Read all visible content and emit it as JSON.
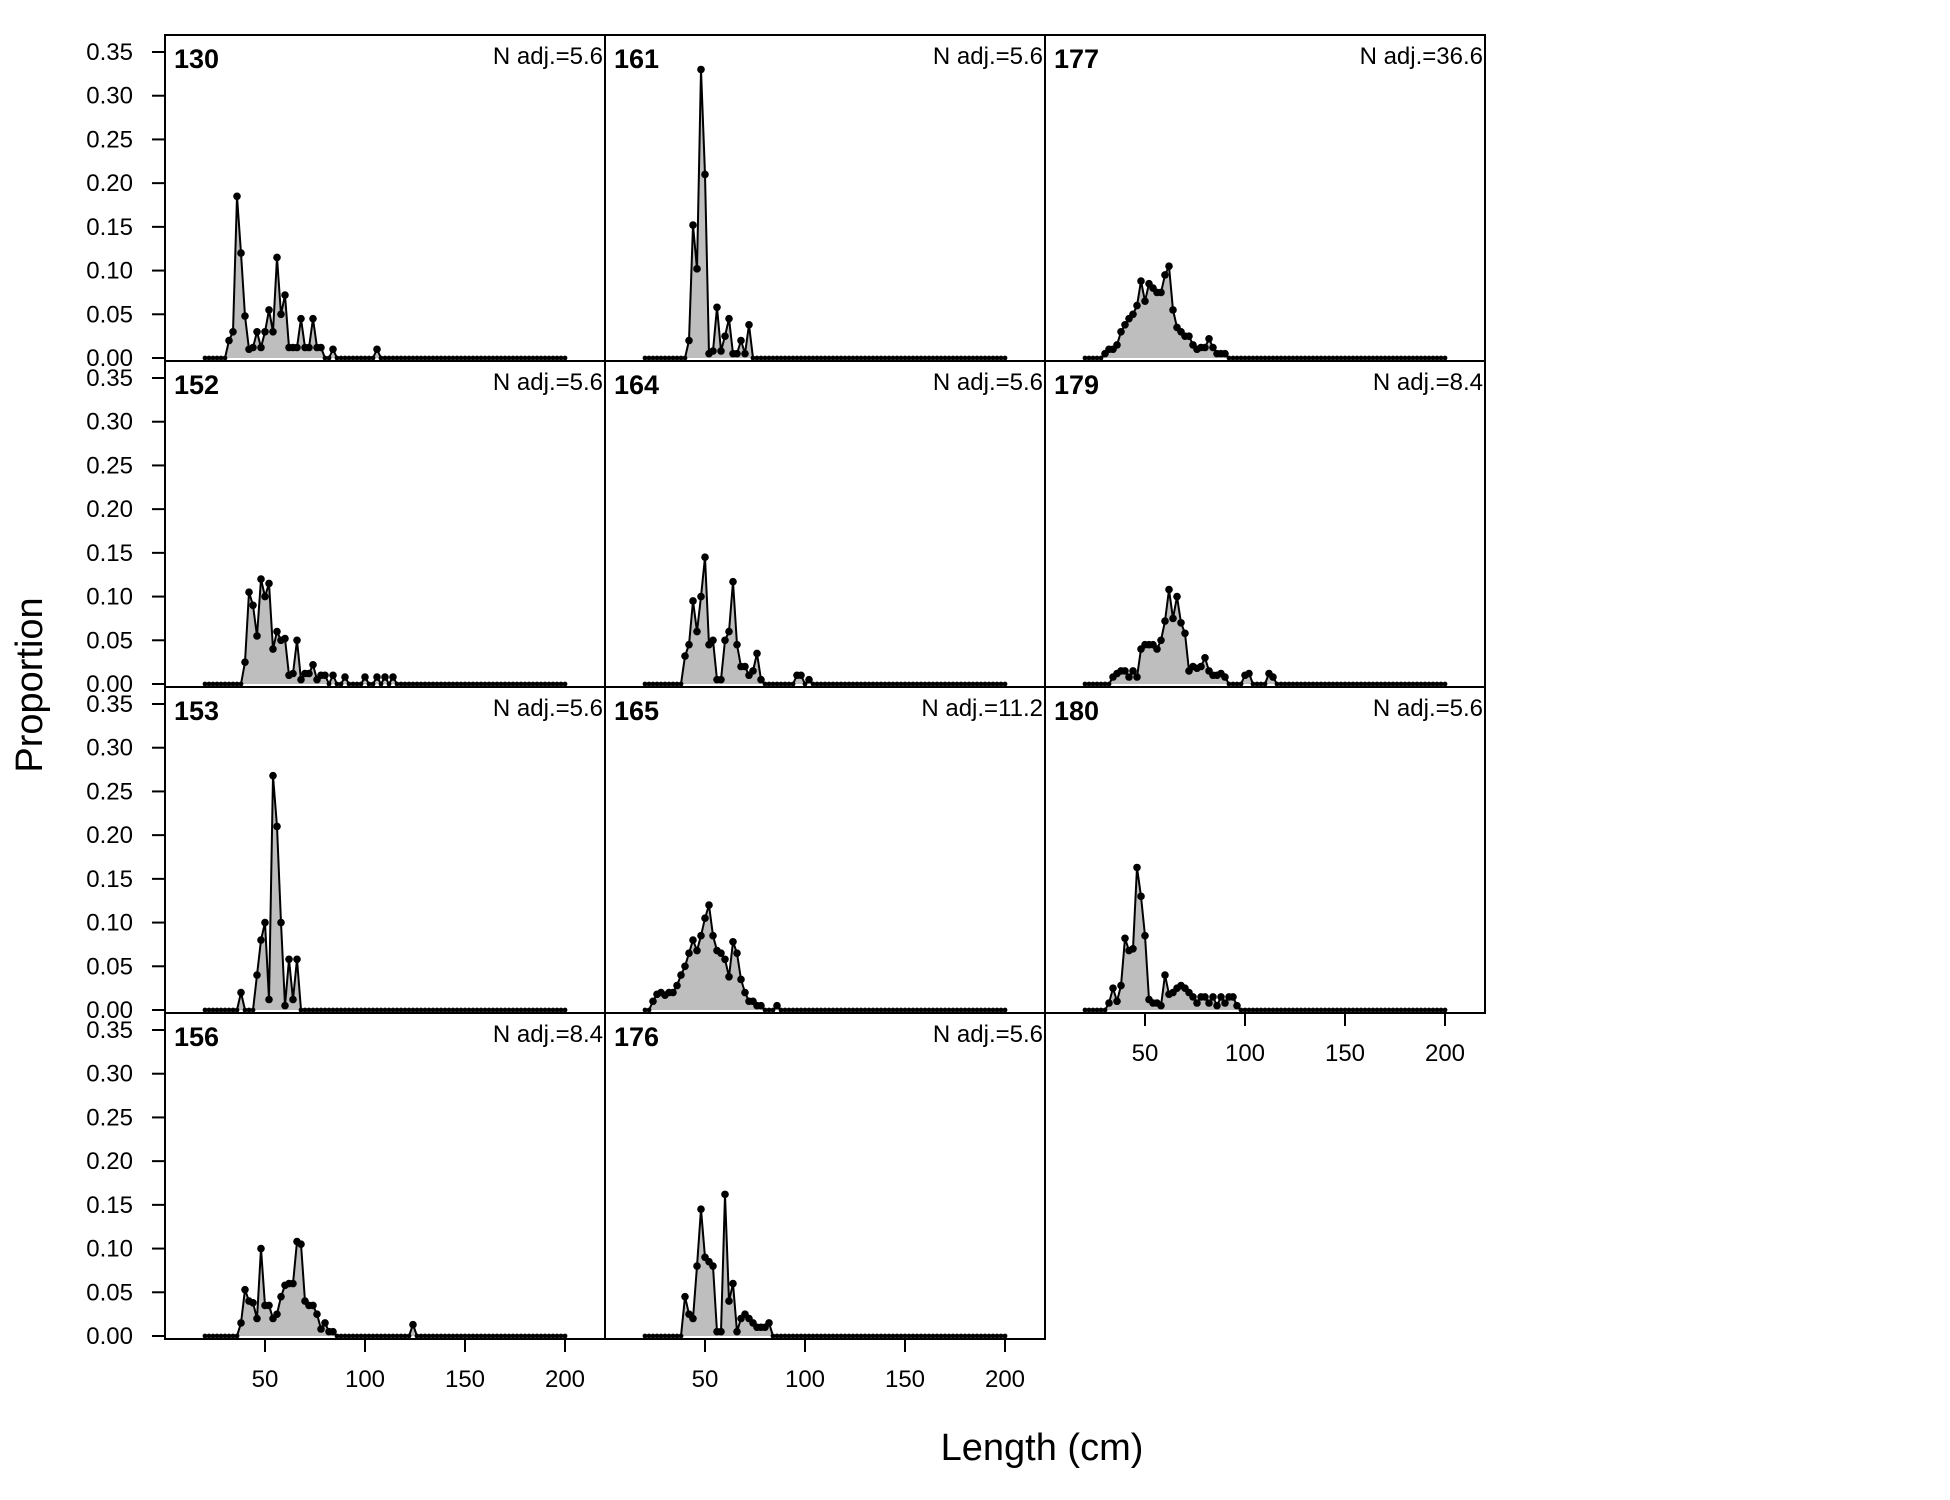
{
  "chart_data": {
    "type": "area",
    "xlabel": "Length (cm)",
    "ylabel": "Proportion",
    "xlim": [
      0,
      220
    ],
    "ylim": [
      0,
      0.35
    ],
    "x_ticks": [
      50,
      100,
      150,
      200
    ],
    "y_ticks": [
      0.0,
      0.05,
      0.1,
      0.15,
      0.2,
      0.25,
      0.3,
      0.35
    ],
    "y_tick_labels": [
      "0.00",
      "0.05",
      "0.10",
      "0.15",
      "0.20",
      "0.25",
      "0.30",
      "0.35"
    ],
    "fill_color": "#bebebe",
    "line_color": "#000000",
    "x_start": 20,
    "x_step": 2,
    "x_end": 200,
    "grid": false,
    "panels": [
      {
        "id": "130",
        "n_label": "N adj.=5.6",
        "col": 0,
        "row": 0,
        "points": [
          [
            32,
            0.02
          ],
          [
            34,
            0.03
          ],
          [
            36,
            0.185
          ],
          [
            38,
            0.12
          ],
          [
            40,
            0.048
          ],
          [
            42,
            0.01
          ],
          [
            44,
            0.012
          ],
          [
            46,
            0.03
          ],
          [
            48,
            0.012
          ],
          [
            50,
            0.03
          ],
          [
            52,
            0.055
          ],
          [
            54,
            0.03
          ],
          [
            56,
            0.115
          ],
          [
            58,
            0.05
          ],
          [
            60,
            0.072
          ],
          [
            62,
            0.012
          ],
          [
            64,
            0.012
          ],
          [
            66,
            0.012
          ],
          [
            68,
            0.045
          ],
          [
            70,
            0.012
          ],
          [
            72,
            0.012
          ],
          [
            74,
            0.045
          ],
          [
            76,
            0.012
          ],
          [
            78,
            0.012
          ],
          [
            84,
            0.01
          ],
          [
            106,
            0.01
          ]
        ]
      },
      {
        "id": "152",
        "n_label": "N adj.=5.6",
        "col": 0,
        "row": 1,
        "points": [
          [
            40,
            0.025
          ],
          [
            42,
            0.105
          ],
          [
            44,
            0.09
          ],
          [
            46,
            0.055
          ],
          [
            48,
            0.12
          ],
          [
            50,
            0.1
          ],
          [
            52,
            0.115
          ],
          [
            54,
            0.04
          ],
          [
            56,
            0.06
          ],
          [
            58,
            0.05
          ],
          [
            60,
            0.052
          ],
          [
            62,
            0.01
          ],
          [
            64,
            0.012
          ],
          [
            66,
            0.05
          ],
          [
            68,
            0.005
          ],
          [
            70,
            0.012
          ],
          [
            72,
            0.012
          ],
          [
            74,
            0.022
          ],
          [
            76,
            0.005
          ],
          [
            78,
            0.01
          ],
          [
            80,
            0.01
          ],
          [
            84,
            0.01
          ],
          [
            90,
            0.008
          ],
          [
            100,
            0.008
          ],
          [
            106,
            0.008
          ],
          [
            110,
            0.008
          ],
          [
            114,
            0.008
          ]
        ]
      },
      {
        "id": "153",
        "n_label": "N adj.=5.6",
        "col": 0,
        "row": 2,
        "points": [
          [
            38,
            0.02
          ],
          [
            46,
            0.04
          ],
          [
            48,
            0.08
          ],
          [
            50,
            0.1
          ],
          [
            52,
            0.012
          ],
          [
            54,
            0.268
          ],
          [
            56,
            0.21
          ],
          [
            58,
            0.1
          ],
          [
            60,
            0.005
          ],
          [
            62,
            0.058
          ],
          [
            64,
            0.012
          ],
          [
            66,
            0.058
          ]
        ]
      },
      {
        "id": "156",
        "n_label": "N adj.=8.4",
        "col": 0,
        "row": 3,
        "points": [
          [
            38,
            0.015
          ],
          [
            40,
            0.053
          ],
          [
            42,
            0.04
          ],
          [
            44,
            0.038
          ],
          [
            46,
            0.02
          ],
          [
            48,
            0.1
          ],
          [
            50,
            0.035
          ],
          [
            52,
            0.035
          ],
          [
            54,
            0.02
          ],
          [
            56,
            0.025
          ],
          [
            58,
            0.045
          ],
          [
            60,
            0.058
          ],
          [
            62,
            0.06
          ],
          [
            64,
            0.06
          ],
          [
            66,
            0.108
          ],
          [
            68,
            0.105
          ],
          [
            70,
            0.04
          ],
          [
            72,
            0.035
          ],
          [
            74,
            0.035
          ],
          [
            76,
            0.025
          ],
          [
            78,
            0.008
          ],
          [
            80,
            0.015
          ],
          [
            82,
            0.005
          ],
          [
            84,
            0.005
          ],
          [
            124,
            0.013
          ]
        ]
      },
      {
        "id": "161",
        "n_label": "N adj.=5.6",
        "col": 1,
        "row": 0,
        "points": [
          [
            42,
            0.02
          ],
          [
            44,
            0.152
          ],
          [
            46,
            0.102
          ],
          [
            48,
            0.33
          ],
          [
            50,
            0.21
          ],
          [
            52,
            0.005
          ],
          [
            54,
            0.008
          ],
          [
            56,
            0.058
          ],
          [
            58,
            0.008
          ],
          [
            60,
            0.025
          ],
          [
            62,
            0.045
          ],
          [
            64,
            0.005
          ],
          [
            66,
            0.005
          ],
          [
            68,
            0.02
          ],
          [
            70,
            0.005
          ],
          [
            72,
            0.038
          ]
        ]
      },
      {
        "id": "164",
        "n_label": "N adj.=5.6",
        "col": 1,
        "row": 1,
        "points": [
          [
            40,
            0.032
          ],
          [
            42,
            0.045
          ],
          [
            44,
            0.095
          ],
          [
            46,
            0.06
          ],
          [
            48,
            0.1
          ],
          [
            50,
            0.145
          ],
          [
            52,
            0.045
          ],
          [
            54,
            0.05
          ],
          [
            56,
            0.005
          ],
          [
            58,
            0.005
          ],
          [
            60,
            0.05
          ],
          [
            62,
            0.06
          ],
          [
            64,
            0.117
          ],
          [
            66,
            0.045
          ],
          [
            68,
            0.02
          ],
          [
            70,
            0.02
          ],
          [
            72,
            0.01
          ],
          [
            74,
            0.015
          ],
          [
            76,
            0.035
          ],
          [
            78,
            0.005
          ],
          [
            96,
            0.01
          ],
          [
            98,
            0.01
          ],
          [
            102,
            0.005
          ]
        ]
      },
      {
        "id": "165",
        "n_label": "N adj.=11.2",
        "col": 1,
        "row": 2,
        "points": [
          [
            24,
            0.01
          ],
          [
            26,
            0.018
          ],
          [
            28,
            0.02
          ],
          [
            30,
            0.017
          ],
          [
            32,
            0.02
          ],
          [
            34,
            0.02
          ],
          [
            36,
            0.028
          ],
          [
            38,
            0.04
          ],
          [
            40,
            0.05
          ],
          [
            42,
            0.065
          ],
          [
            44,
            0.08
          ],
          [
            46,
            0.068
          ],
          [
            48,
            0.085
          ],
          [
            50,
            0.105
          ],
          [
            52,
            0.12
          ],
          [
            54,
            0.085
          ],
          [
            56,
            0.068
          ],
          [
            58,
            0.065
          ],
          [
            60,
            0.058
          ],
          [
            62,
            0.038
          ],
          [
            64,
            0.078
          ],
          [
            66,
            0.065
          ],
          [
            68,
            0.035
          ],
          [
            70,
            0.02
          ],
          [
            72,
            0.01
          ],
          [
            74,
            0.01
          ],
          [
            76,
            0.005
          ],
          [
            78,
            0.005
          ],
          [
            86,
            0.005
          ]
        ]
      },
      {
        "id": "176",
        "n_label": "N adj.=5.6",
        "col": 1,
        "row": 3,
        "points": [
          [
            40,
            0.045
          ],
          [
            42,
            0.025
          ],
          [
            44,
            0.02
          ],
          [
            46,
            0.08
          ],
          [
            48,
            0.145
          ],
          [
            50,
            0.09
          ],
          [
            52,
            0.085
          ],
          [
            54,
            0.08
          ],
          [
            56,
            0.005
          ],
          [
            58,
            0.005
          ],
          [
            60,
            0.162
          ],
          [
            62,
            0.04
          ],
          [
            64,
            0.06
          ],
          [
            66,
            0.005
          ],
          [
            68,
            0.02
          ],
          [
            70,
            0.025
          ],
          [
            72,
            0.02
          ],
          [
            74,
            0.015
          ],
          [
            76,
            0.01
          ],
          [
            78,
            0.01
          ],
          [
            80,
            0.01
          ],
          [
            82,
            0.015
          ]
        ]
      },
      {
        "id": "177",
        "n_label": "N adj.=36.6",
        "col": 2,
        "row": 0,
        "points": [
          [
            30,
            0.005
          ],
          [
            32,
            0.01
          ],
          [
            34,
            0.01
          ],
          [
            36,
            0.015
          ],
          [
            38,
            0.03
          ],
          [
            40,
            0.038
          ],
          [
            42,
            0.045
          ],
          [
            44,
            0.05
          ],
          [
            46,
            0.06
          ],
          [
            48,
            0.088
          ],
          [
            50,
            0.065
          ],
          [
            52,
            0.085
          ],
          [
            54,
            0.08
          ],
          [
            56,
            0.075
          ],
          [
            58,
            0.075
          ],
          [
            60,
            0.095
          ],
          [
            62,
            0.105
          ],
          [
            64,
            0.055
          ],
          [
            66,
            0.035
          ],
          [
            68,
            0.03
          ],
          [
            70,
            0.025
          ],
          [
            72,
            0.025
          ],
          [
            74,
            0.015
          ],
          [
            76,
            0.01
          ],
          [
            78,
            0.012
          ],
          [
            80,
            0.012
          ],
          [
            82,
            0.022
          ],
          [
            84,
            0.012
          ],
          [
            86,
            0.005
          ],
          [
            88,
            0.005
          ],
          [
            90,
            0.005
          ]
        ]
      },
      {
        "id": "179",
        "n_label": "N adj.=8.4",
        "col": 2,
        "row": 1,
        "points": [
          [
            34,
            0.008
          ],
          [
            36,
            0.012
          ],
          [
            38,
            0.015
          ],
          [
            40,
            0.015
          ],
          [
            42,
            0.008
          ],
          [
            44,
            0.015
          ],
          [
            46,
            0.008
          ],
          [
            48,
            0.04
          ],
          [
            50,
            0.045
          ],
          [
            52,
            0.045
          ],
          [
            54,
            0.045
          ],
          [
            56,
            0.04
          ],
          [
            58,
            0.05
          ],
          [
            60,
            0.072
          ],
          [
            62,
            0.108
          ],
          [
            64,
            0.075
          ],
          [
            66,
            0.1
          ],
          [
            68,
            0.07
          ],
          [
            70,
            0.058
          ],
          [
            72,
            0.015
          ],
          [
            74,
            0.02
          ],
          [
            76,
            0.018
          ],
          [
            78,
            0.02
          ],
          [
            80,
            0.03
          ],
          [
            82,
            0.015
          ],
          [
            84,
            0.01
          ],
          [
            86,
            0.01
          ],
          [
            88,
            0.012
          ],
          [
            90,
            0.008
          ],
          [
            100,
            0.01
          ],
          [
            102,
            0.012
          ],
          [
            112,
            0.012
          ],
          [
            114,
            0.008
          ]
        ]
      },
      {
        "id": "180",
        "n_label": "N adj.=5.6",
        "col": 2,
        "row": 2,
        "points": [
          [
            32,
            0.008
          ],
          [
            34,
            0.025
          ],
          [
            36,
            0.01
          ],
          [
            38,
            0.028
          ],
          [
            40,
            0.082
          ],
          [
            42,
            0.068
          ],
          [
            44,
            0.07
          ],
          [
            46,
            0.163
          ],
          [
            48,
            0.13
          ],
          [
            50,
            0.085
          ],
          [
            52,
            0.012
          ],
          [
            54,
            0.008
          ],
          [
            56,
            0.008
          ],
          [
            58,
            0.005
          ],
          [
            60,
            0.04
          ],
          [
            62,
            0.018
          ],
          [
            64,
            0.02
          ],
          [
            66,
            0.025
          ],
          [
            68,
            0.028
          ],
          [
            70,
            0.025
          ],
          [
            72,
            0.02
          ],
          [
            74,
            0.015
          ],
          [
            76,
            0.008
          ],
          [
            78,
            0.015
          ],
          [
            80,
            0.015
          ],
          [
            82,
            0.008
          ],
          [
            84,
            0.015
          ],
          [
            86,
            0.005
          ],
          [
            88,
            0.015
          ],
          [
            90,
            0.008
          ],
          [
            92,
            0.015
          ],
          [
            94,
            0.015
          ],
          [
            96,
            0.005
          ]
        ]
      }
    ]
  }
}
